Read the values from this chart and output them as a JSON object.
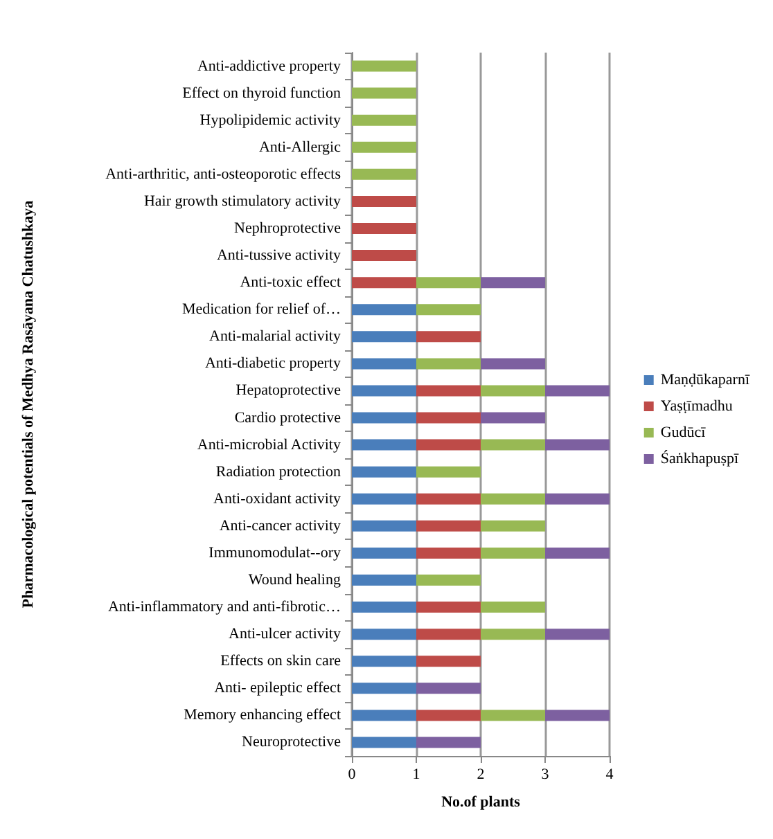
{
  "chart_data": {
    "type": "bar",
    "orientation": "horizontal",
    "stacked": true,
    "xlabel": "No.of plants",
    "ylabel": "Pharmacological potentials of Medhya Rasāyana Chatushkaya",
    "categories": [
      "Anti-addictive property",
      "Effect on thyroid function",
      "Hypolipidemic activity",
      "Anti-Allergic",
      "Anti-arthritic, anti-osteoporotic effects",
      "Hair growth stimulatory activity",
      "Nephroprotective",
      "Anti-tussive activity",
      "Anti-toxic effect",
      "Medication for relief of…",
      "Anti-malarial activity",
      "Anti-diabetic property",
      "Hepatoprotective",
      "Cardio protective",
      "Anti-microbial Activity",
      "Radiation protection",
      "Anti-oxidant activity",
      "Anti-cancer activity",
      "Immunomodulat--ory",
      "Wound healing",
      "Anti-inflammatory and anti-fibrotic…",
      "Anti-ulcer activity",
      "Effects on skin care",
      "Anti- epileptic effect",
      "Memory enhancing effect",
      "Neuroprotective"
    ],
    "series": [
      {
        "name": "Maṇḍūkaparnī",
        "color": "#4a7ebb",
        "values": [
          null,
          null,
          null,
          null,
          null,
          null,
          null,
          null,
          null,
          1,
          1,
          1,
          1,
          1,
          1,
          1,
          1,
          1,
          1,
          1,
          1,
          1,
          1,
          1,
          1,
          1
        ]
      },
      {
        "name": "Yaṣṭīmadhu",
        "color": "#be4b48",
        "values": [
          null,
          null,
          null,
          null,
          null,
          1,
          1,
          1,
          1,
          null,
          1,
          null,
          1,
          1,
          1,
          null,
          1,
          1,
          1,
          null,
          1,
          1,
          1,
          null,
          1,
          null
        ]
      },
      {
        "name": "Gudūcī",
        "color": "#98b954",
        "values": [
          1,
          1,
          1,
          1,
          1,
          null,
          null,
          null,
          1,
          1,
          null,
          1,
          1,
          null,
          1,
          1,
          1,
          1,
          1,
          1,
          1,
          1,
          null,
          null,
          1,
          null
        ]
      },
      {
        "name": "Śaṅkhapuṣpī",
        "color": "#7d60a0",
        "values": [
          null,
          null,
          null,
          null,
          null,
          null,
          null,
          null,
          1,
          null,
          null,
          1,
          1,
          1,
          1,
          null,
          1,
          null,
          1,
          null,
          null,
          1,
          null,
          1,
          1,
          1
        ]
      }
    ],
    "xlim": [
      0,
      4
    ],
    "xticks": [
      0,
      1,
      2,
      3,
      4
    ],
    "grid": "x",
    "legend": "right"
  }
}
